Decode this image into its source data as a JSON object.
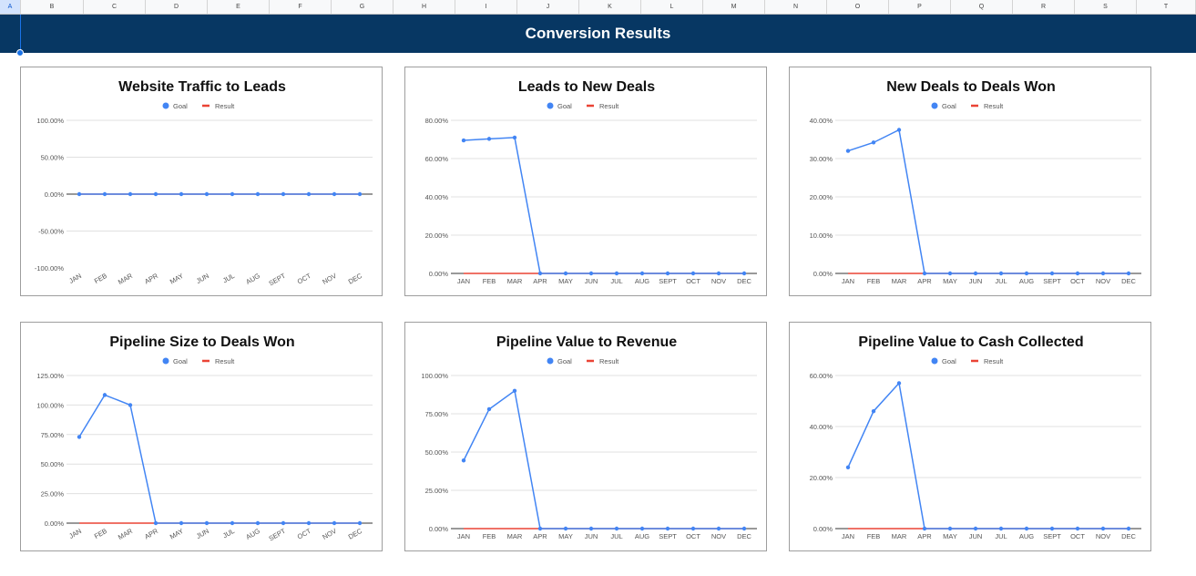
{
  "spreadsheet": {
    "columns": [
      "A",
      "B",
      "C",
      "D",
      "E",
      "F",
      "G",
      "H",
      "I",
      "J",
      "K",
      "L",
      "M",
      "N",
      "O",
      "P",
      "Q",
      "R",
      "S",
      "T"
    ],
    "selected_column": "A"
  },
  "banner": {
    "title": "Conversion Results"
  },
  "colors": {
    "banner": "#073763",
    "goal": "#4285f4",
    "result": "#ea4335"
  },
  "legend": {
    "goal": "Goal",
    "result": "Result"
  },
  "months": [
    "JAN",
    "FEB",
    "MAR",
    "APR",
    "MAY",
    "JUN",
    "JUL",
    "AUG",
    "SEPT",
    "OCT",
    "NOV",
    "DEC"
  ],
  "chart_data": [
    {
      "type": "line",
      "title": "Website Traffic to Leads",
      "categories": [
        "JAN",
        "FEB",
        "MAR",
        "APR",
        "MAY",
        "JUN",
        "JUL",
        "AUG",
        "SEPT",
        "OCT",
        "NOV",
        "DEC"
      ],
      "yticks": [
        "100.00%",
        "50.00%",
        "0.00%",
        "-50.00%",
        "-100.00%"
      ],
      "ylim": [
        -100,
        100
      ],
      "xlabels_rotated": true,
      "legend": "top",
      "series": [
        {
          "name": "Goal",
          "values": [
            0,
            0,
            0,
            0,
            0,
            0,
            0,
            0,
            0,
            0,
            0,
            0
          ]
        },
        {
          "name": "Result",
          "values": [
            0,
            0,
            0,
            0,
            0,
            0,
            0,
            0,
            0,
            0,
            0,
            0
          ]
        }
      ]
    },
    {
      "type": "line",
      "title": "Leads to New Deals",
      "categories": [
        "JAN",
        "FEB",
        "MAR",
        "APR",
        "MAY",
        "JUN",
        "JUL",
        "AUG",
        "SEPT",
        "OCT",
        "NOV",
        "DEC"
      ],
      "yticks": [
        "80.00%",
        "60.00%",
        "40.00%",
        "20.00%",
        "0.00%"
      ],
      "ylim": [
        0,
        80
      ],
      "xlabels_rotated": false,
      "legend": "top",
      "series": [
        {
          "name": "Goal",
          "values": [
            69.5,
            70.3,
            71,
            0,
            0,
            0,
            0,
            0,
            0,
            0,
            0,
            0
          ]
        },
        {
          "name": "Result",
          "values": [
            0,
            0,
            0,
            0,
            0,
            0,
            0,
            0,
            0,
            0,
            0,
            0
          ]
        }
      ]
    },
    {
      "type": "line",
      "title": "New Deals to Deals Won",
      "categories": [
        "JAN",
        "FEB",
        "MAR",
        "APR",
        "MAY",
        "JUN",
        "JUL",
        "AUG",
        "SEPT",
        "OCT",
        "NOV",
        "DEC"
      ],
      "yticks": [
        "40.00%",
        "30.00%",
        "20.00%",
        "10.00%",
        "0.00%"
      ],
      "ylim": [
        0,
        40
      ],
      "xlabels_rotated": false,
      "legend": "top",
      "series": [
        {
          "name": "Goal",
          "values": [
            32,
            34.2,
            37.5,
            0,
            0,
            0,
            0,
            0,
            0,
            0,
            0,
            0
          ]
        },
        {
          "name": "Result",
          "values": [
            0,
            0,
            0,
            0,
            0,
            0,
            0,
            0,
            0,
            0,
            0,
            0
          ]
        }
      ]
    },
    {
      "type": "line",
      "title": "Pipeline Size to Deals Won",
      "categories": [
        "JAN",
        "FEB",
        "MAR",
        "APR",
        "MAY",
        "JUN",
        "JUL",
        "AUG",
        "SEPT",
        "OCT",
        "NOV",
        "DEC"
      ],
      "yticks": [
        "125.00%",
        "100.00%",
        "75.00%",
        "50.00%",
        "25.00%",
        "0.00%"
      ],
      "ylim": [
        0,
        125
      ],
      "xlabels_rotated": true,
      "legend": "top",
      "series": [
        {
          "name": "Goal",
          "values": [
            73,
            108.5,
            100,
            0,
            0,
            0,
            0,
            0,
            0,
            0,
            0,
            0
          ]
        },
        {
          "name": "Result",
          "values": [
            0,
            0,
            0,
            0,
            0,
            0,
            0,
            0,
            0,
            0,
            0,
            0
          ]
        }
      ]
    },
    {
      "type": "line",
      "title": "Pipeline Value to Revenue",
      "categories": [
        "JAN",
        "FEB",
        "MAR",
        "APR",
        "MAY",
        "JUN",
        "JUL",
        "AUG",
        "SEPT",
        "OCT",
        "NOV",
        "DEC"
      ],
      "yticks": [
        "100.00%",
        "75.00%",
        "50.00%",
        "25.00%",
        "0.00%"
      ],
      "ylim": [
        0,
        100
      ],
      "xlabels_rotated": false,
      "legend": "top",
      "series": [
        {
          "name": "Goal",
          "values": [
            44.5,
            78,
            90,
            0,
            0,
            0,
            0,
            0,
            0,
            0,
            0,
            0
          ]
        },
        {
          "name": "Result",
          "values": [
            0,
            0,
            0,
            0,
            0,
            0,
            0,
            0,
            0,
            0,
            0,
            0
          ]
        }
      ]
    },
    {
      "type": "line",
      "title": "Pipeline Value to Cash Collected",
      "categories": [
        "JAN",
        "FEB",
        "MAR",
        "APR",
        "MAY",
        "JUN",
        "JUL",
        "AUG",
        "SEPT",
        "OCT",
        "NOV",
        "DEC"
      ],
      "yticks": [
        "60.00%",
        "40.00%",
        "20.00%",
        "0.00%"
      ],
      "ylim": [
        0,
        60
      ],
      "xlabels_rotated": false,
      "legend": "top",
      "series": [
        {
          "name": "Goal",
          "values": [
            24,
            46,
            57,
            0,
            0,
            0,
            0,
            0,
            0,
            0,
            0,
            0
          ]
        },
        {
          "name": "Result",
          "values": [
            0,
            0,
            0,
            0,
            0,
            0,
            0,
            0,
            0,
            0,
            0,
            0
          ]
        }
      ]
    }
  ]
}
